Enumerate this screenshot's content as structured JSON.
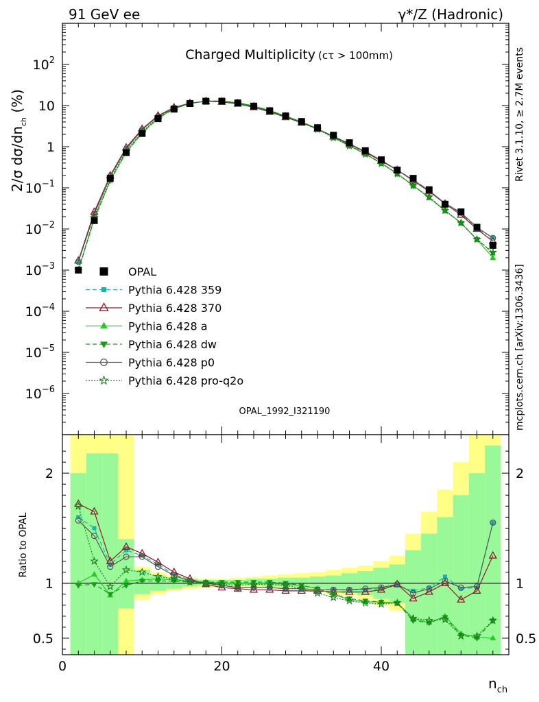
{
  "header": {
    "left": "91 GeV ee",
    "right": "γ*/Z (Hadronic)"
  },
  "side_labels": {
    "rivet": "Rivet 3.1.10, ≥ 2.7M events",
    "mcplots": "mcplots.cern.ch [arXiv:1306.3436]"
  },
  "watermark": "OPAL_1992_I321190",
  "chart_data": [
    {
      "type": "scatter",
      "title": "Charged Multiplicity",
      "title_suffix": "(cτ > 100mm)",
      "ylabel": {
        "base": "2/σ dσ/dn",
        "sub": "ch",
        "suffix": " (%)"
      },
      "yscale": "log",
      "ylim": [
        1e-07,
        1000
      ],
      "yticks": [
        {
          "v": 1e-06,
          "b": "10",
          "e": "−6"
        },
        {
          "v": 1e-05,
          "b": "10",
          "e": "−5"
        },
        {
          "v": 0.0001,
          "b": "10",
          "e": "−4"
        },
        {
          "v": 0.001,
          "b": "10",
          "e": "−3"
        },
        {
          "v": 0.01,
          "b": "10",
          "e": "−2"
        },
        {
          "v": 0.1,
          "b": "10",
          "e": "−1"
        },
        {
          "v": 1,
          "b": "1",
          "e": ""
        },
        {
          "v": 10,
          "b": "10",
          "e": ""
        },
        {
          "v": 100,
          "b": "10",
          "e": "2"
        }
      ],
      "xlim": [
        0,
        56
      ],
      "legend_position": "middle-left",
      "x": [
        2,
        4,
        6,
        8,
        10,
        12,
        14,
        16,
        18,
        20,
        22,
        24,
        26,
        28,
        30,
        32,
        34,
        36,
        38,
        40,
        42,
        44,
        46,
        48,
        50,
        52,
        54
      ],
      "series": [
        {
          "name": "OPAL",
          "color": "#000000",
          "marker": "square",
          "line": "none",
          "values": [
            0.001,
            0.016,
            0.17,
            0.72,
            2.1,
            4.8,
            8.2,
            11.2,
            12.8,
            12.8,
            11.6,
            9.7,
            7.5,
            5.6,
            4.1,
            2.9,
            1.9,
            1.25,
            0.8,
            0.48,
            0.27,
            0.17,
            0.09,
            0.04,
            0.026,
            0.011,
            0.004
          ]
        },
        {
          "name": "Pythia 6.428 359",
          "color": "#20B2AA",
          "marker": "small-square",
          "line": "dashed",
          "values": [
            0.0016,
            0.024,
            0.2,
            0.93,
            2.6,
            5.6,
            8.8,
            11.4,
            12.8,
            12.5,
            11.2,
            9.3,
            7.2,
            5.3,
            3.9,
            2.7,
            1.8,
            1.17,
            0.74,
            0.46,
            0.27,
            0.16,
            0.086,
            0.042,
            0.024,
            0.01,
            0.0062
          ]
        },
        {
          "name": "Pythia 6.428 370",
          "color": "#8B1A2B",
          "marker": "triangle-open",
          "line": "solid",
          "values": [
            0.0017,
            0.026,
            0.2,
            0.95,
            2.7,
            5.7,
            9.0,
            11.5,
            12.7,
            12.3,
            11.0,
            9.1,
            7.0,
            5.2,
            3.8,
            2.7,
            1.75,
            1.15,
            0.73,
            0.45,
            0.27,
            0.15,
            0.082,
            0.041,
            0.022,
            0.01,
            0.005
          ]
        },
        {
          "name": "Pythia 6.428 a",
          "color": "#22CC22",
          "marker": "triangle-filled",
          "line": "solid",
          "values": [
            0.001,
            0.018,
            0.15,
            0.74,
            2.2,
            5.0,
            8.4,
            11.3,
            12.9,
            12.8,
            11.7,
            9.8,
            7.6,
            5.6,
            4.0,
            2.75,
            1.7,
            1.05,
            0.66,
            0.4,
            0.22,
            0.115,
            0.057,
            0.028,
            0.014,
            0.0055,
            0.002
          ]
        },
        {
          "name": "Pythia 6.428 dw",
          "color": "#1A9B1A",
          "marker": "triangle-down-filled",
          "line": "dashed",
          "values": [
            0.001,
            0.017,
            0.15,
            0.72,
            2.15,
            4.9,
            8.3,
            11.2,
            12.9,
            12.9,
            11.8,
            9.8,
            7.6,
            5.6,
            4.0,
            2.75,
            1.72,
            1.07,
            0.67,
            0.4,
            0.22,
            0.113,
            0.058,
            0.028,
            0.014,
            0.0056,
            0.0026
          ]
        },
        {
          "name": "Pythia 6.428 p0",
          "color": "#555555",
          "marker": "circle-open",
          "line": "solid",
          "values": [
            0.0016,
            0.023,
            0.19,
            0.88,
            2.6,
            5.5,
            8.8,
            11.4,
            12.8,
            12.5,
            11.2,
            9.3,
            7.2,
            5.3,
            3.9,
            2.7,
            1.8,
            1.18,
            0.76,
            0.47,
            0.27,
            0.155,
            0.085,
            0.042,
            0.025,
            0.011,
            0.006
          ]
        },
        {
          "name": "Pythia 6.428 pro-q2o",
          "color": "#1E7A1E",
          "marker": "star-open",
          "line": "dotted",
          "values": [
            0.001,
            0.019,
            0.165,
            0.8,
            2.3,
            5.1,
            8.5,
            11.3,
            12.9,
            12.8,
            11.6,
            9.6,
            7.4,
            5.5,
            3.9,
            2.65,
            1.65,
            1.05,
            0.66,
            0.39,
            0.22,
            0.113,
            0.06,
            0.028,
            0.014,
            0.0056,
            0.0027
          ]
        }
      ]
    },
    {
      "type": "scatter",
      "ylabel": "Ratio to OPAL",
      "xlabel": {
        "base": "n",
        "sub": "ch"
      },
      "ylim": [
        0.35,
        2.35
      ],
      "xlim": [
        0,
        56
      ],
      "xticks": [
        0,
        20,
        40
      ],
      "yticks": [
        0.5,
        1,
        2
      ],
      "reference_line": 1,
      "x": [
        2,
        4,
        6,
        8,
        10,
        12,
        14,
        16,
        18,
        20,
        22,
        24,
        26,
        28,
        30,
        32,
        34,
        36,
        38,
        40,
        42,
        44,
        46,
        48,
        50,
        52,
        54
      ],
      "uncertainty_bands": {
        "edges": [
          1,
          3,
          5,
          7,
          9,
          11,
          13,
          15,
          17,
          19,
          21,
          23,
          25,
          27,
          29,
          31,
          33,
          35,
          37,
          39,
          41,
          43,
          45,
          47,
          49,
          51,
          53,
          55
        ],
        "outer": {
          "color": "#FFFF88",
          "low": [
            0.35,
            0.35,
            0.35,
            0.35,
            0.85,
            0.9,
            0.93,
            0.95,
            0.96,
            0.97,
            0.97,
            0.96,
            0.96,
            0.95,
            0.95,
            0.93,
            0.9,
            0.88,
            0.85,
            0.8,
            0.75,
            0.35,
            0.35,
            0.35,
            0.35,
            0.35,
            0.35
          ],
          "high": [
            2.35,
            2.35,
            2.35,
            2.35,
            1.15,
            1.1,
            1.07,
            1.05,
            1.04,
            1.04,
            1.05,
            1.06,
            1.07,
            1.08,
            1.09,
            1.1,
            1.12,
            1.14,
            1.16,
            1.2,
            1.25,
            1.45,
            1.65,
            1.85,
            2.1,
            2.35,
            2.35
          ]
        },
        "inner": {
          "color": "#99F999",
          "low": [
            0.35,
            0.35,
            0.35,
            0.77,
            0.9,
            0.93,
            0.95,
            0.97,
            0.98,
            0.98,
            0.98,
            0.98,
            0.97,
            0.97,
            0.96,
            0.95,
            0.93,
            0.91,
            0.89,
            0.86,
            0.82,
            0.35,
            0.35,
            0.35,
            0.35,
            0.35,
            0.35
          ],
          "high": [
            2.0,
            2.18,
            2.18,
            1.4,
            1.12,
            1.07,
            1.05,
            1.04,
            1.03,
            1.03,
            1.03,
            1.04,
            1.04,
            1.05,
            1.05,
            1.06,
            1.07,
            1.09,
            1.11,
            1.14,
            1.17,
            1.3,
            1.45,
            1.6,
            1.8,
            2.0,
            2.25
          ]
        }
      },
      "series": [
        {
          "name": "Pythia 6.428 359",
          "color": "#20B2AA",
          "marker": "small-square",
          "line": "dashed",
          "values": [
            1.6,
            1.5,
            1.17,
            1.3,
            1.25,
            1.17,
            1.08,
            1.03,
            1.0,
            0.98,
            0.96,
            0.96,
            0.96,
            0.95,
            0.95,
            0.94,
            0.94,
            0.94,
            0.94,
            0.95,
            0.98,
            0.93,
            0.96,
            1.06,
            0.95,
            0.96,
            1.55
          ]
        },
        {
          "name": "Pythia 6.428 370",
          "color": "#8B1A2B",
          "marker": "triangle-open",
          "line": "solid",
          "values": [
            1.72,
            1.65,
            1.2,
            1.33,
            1.27,
            1.19,
            1.1,
            1.04,
            0.99,
            0.96,
            0.95,
            0.94,
            0.94,
            0.93,
            0.93,
            0.93,
            0.92,
            0.92,
            0.92,
            0.94,
            0.99,
            0.86,
            0.92,
            1.0,
            0.85,
            0.93,
            1.25
          ]
        },
        {
          "name": "Pythia 6.428 a",
          "color": "#22CC22",
          "marker": "triangle-filled",
          "line": "solid",
          "values": [
            1.0,
            1.08,
            0.89,
            1.02,
            1.03,
            1.04,
            1.03,
            1.02,
            1.01,
            1.0,
            1.0,
            1.0,
            1.0,
            0.99,
            0.98,
            0.95,
            0.9,
            0.85,
            0.83,
            0.83,
            0.82,
            0.68,
            0.64,
            0.7,
            0.54,
            0.51,
            0.5
          ]
        },
        {
          "name": "Pythia 6.428 dw",
          "color": "#1A9B1A",
          "marker": "triangle-down-filled",
          "line": "dashed",
          "values": [
            0.98,
            0.99,
            0.9,
            0.98,
            1.02,
            1.02,
            1.02,
            1.01,
            1.01,
            1.01,
            1.01,
            1.01,
            1.01,
            1.0,
            0.98,
            0.95,
            0.9,
            0.86,
            0.84,
            0.83,
            0.82,
            0.66,
            0.64,
            0.69,
            0.53,
            0.5,
            0.66
          ]
        },
        {
          "name": "Pythia 6.428 p0",
          "color": "#555555",
          "marker": "circle-open",
          "line": "solid",
          "values": [
            1.57,
            1.43,
            1.15,
            1.24,
            1.24,
            1.15,
            1.07,
            1.02,
            1.0,
            0.98,
            0.96,
            0.96,
            0.96,
            0.95,
            0.95,
            0.94,
            0.94,
            0.94,
            0.95,
            0.96,
            0.99,
            0.91,
            0.95,
            1.02,
            0.96,
            0.97,
            1.55
          ]
        },
        {
          "name": "Pythia 6.428 pro-q2o",
          "color": "#1E7A1E",
          "marker": "star-open",
          "line": "dotted",
          "values": [
            1.7,
            1.2,
            0.97,
            1.12,
            1.1,
            1.06,
            1.04,
            1.01,
            1.0,
            0.99,
            0.98,
            0.99,
            0.99,
            0.98,
            0.95,
            0.91,
            0.87,
            0.84,
            0.82,
            0.81,
            0.82,
            0.68,
            0.66,
            0.67,
            0.52,
            0.52,
            0.66
          ]
        }
      ]
    }
  ]
}
